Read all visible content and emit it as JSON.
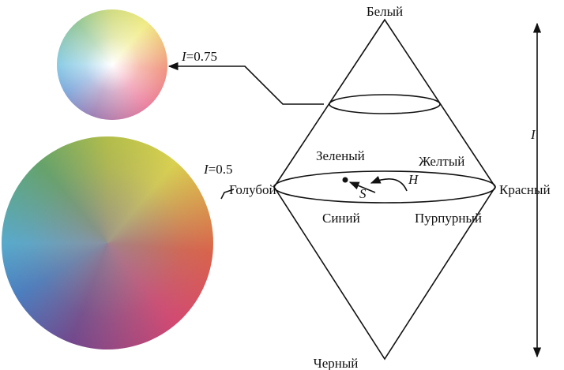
{
  "labels": {
    "white": "Белый",
    "black": "Черный",
    "cyan": "Голубой",
    "green": "Зеленый",
    "yellow": "Желтый",
    "red": "Красный",
    "blue": "Синий",
    "magenta": "Пурпурный",
    "hue": "H",
    "saturation": "S",
    "axis": "I"
  },
  "intensity_labels": [
    {
      "symbol": "I",
      "text": "=0.75"
    },
    {
      "symbol": "I",
      "text": "=0.5"
    }
  ]
}
